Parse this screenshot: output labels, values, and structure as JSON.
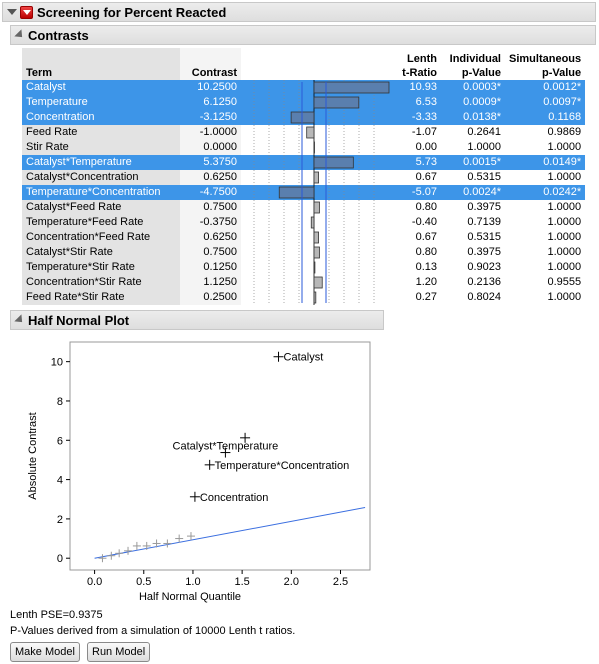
{
  "report": {
    "title": "Screening for Percent Reacted",
    "contrasts_title": "Contrasts",
    "half_normal_title": "Half Normal Plot"
  },
  "table": {
    "headers": {
      "term": "Term",
      "contrast": "Contrast",
      "lenth_1": "Lenth",
      "lenth_2": "t-Ratio",
      "ind_1": "Individual",
      "ind_2": "p-Value",
      "sim_1": "Simultaneous",
      "sim_2": "p-Value"
    },
    "rows": [
      {
        "term": "Catalyst",
        "contrast": "10.2500",
        "lenth": "10.93",
        "ind": "0.0003*",
        "sim": "0.0012*",
        "selected": true,
        "ind_sig": true,
        "sim_sig": true
      },
      {
        "term": "Temperature",
        "contrast": "6.1250",
        "lenth": "6.53",
        "ind": "0.0009*",
        "sim": "0.0097*",
        "selected": true,
        "ind_sig": true,
        "sim_sig": true
      },
      {
        "term": "Concentration",
        "contrast": "-3.1250",
        "lenth": "-3.33",
        "ind": "0.0138*",
        "sim": "0.1168",
        "selected": true,
        "ind_sig": true,
        "sim_sig": false
      },
      {
        "term": "Feed Rate",
        "contrast": "-1.0000",
        "lenth": "-1.07",
        "ind": "0.2641",
        "sim": "0.9869",
        "selected": false,
        "ind_sig": false,
        "sim_sig": false
      },
      {
        "term": "Stir Rate",
        "contrast": "0.0000",
        "lenth": "0.00",
        "ind": "1.0000",
        "sim": "1.0000",
        "selected": false,
        "ind_sig": false,
        "sim_sig": false
      },
      {
        "term": "Catalyst*Temperature",
        "contrast": "5.3750",
        "lenth": "5.73",
        "ind": "0.0015*",
        "sim": "0.0149*",
        "selected": true,
        "ind_sig": true,
        "sim_sig": true
      },
      {
        "term": "Catalyst*Concentration",
        "contrast": "0.6250",
        "lenth": "0.67",
        "ind": "0.5315",
        "sim": "1.0000",
        "selected": false,
        "ind_sig": false,
        "sim_sig": false
      },
      {
        "term": "Temperature*Concentration",
        "contrast": "-4.7500",
        "lenth": "-5.07",
        "ind": "0.0024*",
        "sim": "0.0242*",
        "selected": true,
        "ind_sig": true,
        "sim_sig": true
      },
      {
        "term": "Catalyst*Feed Rate",
        "contrast": "0.7500",
        "lenth": "0.80",
        "ind": "0.3975",
        "sim": "1.0000",
        "selected": false,
        "ind_sig": false,
        "sim_sig": false
      },
      {
        "term": "Temperature*Feed Rate",
        "contrast": "-0.3750",
        "lenth": "-0.40",
        "ind": "0.7139",
        "sim": "1.0000",
        "selected": false,
        "ind_sig": false,
        "sim_sig": false
      },
      {
        "term": "Concentration*Feed Rate",
        "contrast": "0.6250",
        "lenth": "0.67",
        "ind": "0.5315",
        "sim": "1.0000",
        "selected": false,
        "ind_sig": false,
        "sim_sig": false
      },
      {
        "term": "Catalyst*Stir Rate",
        "contrast": "0.7500",
        "lenth": "0.80",
        "ind": "0.3975",
        "sim": "1.0000",
        "selected": false,
        "ind_sig": false,
        "sim_sig": false
      },
      {
        "term": "Temperature*Stir Rate",
        "contrast": "0.1250",
        "lenth": "0.13",
        "ind": "0.9023",
        "sim": "1.0000",
        "selected": false,
        "ind_sig": false,
        "sim_sig": false
      },
      {
        "term": "Concentration*Stir Rate",
        "contrast": "1.1250",
        "lenth": "1.20",
        "ind": "0.2136",
        "sim": "0.9555",
        "selected": false,
        "ind_sig": false,
        "sim_sig": false
      },
      {
        "term": "Feed Rate*Stir Rate",
        "contrast": "0.2500",
        "lenth": "0.27",
        "ind": "0.8024",
        "sim": "1.0000",
        "selected": false,
        "ind_sig": false,
        "sim_sig": false
      }
    ]
  },
  "chart_data": {
    "type": "scatter",
    "xlabel": "Half Normal Quantile",
    "ylabel": "Absolute Contrast",
    "xlim": [
      -0.25,
      2.8
    ],
    "ylim": [
      -0.6,
      11.0
    ],
    "xticks": [
      "0.0",
      "0.5",
      "1.0",
      "1.5",
      "2.0",
      "2.5"
    ],
    "xtick_values": [
      0,
      0.5,
      1.0,
      1.5,
      2.0,
      2.5
    ],
    "yticks": [
      "0",
      "2",
      "4",
      "6",
      "8",
      "10"
    ],
    "ytick_values": [
      0,
      2,
      4,
      6,
      8,
      10
    ],
    "grid": false,
    "line": {
      "x": [
        0,
        2.75
      ],
      "y": [
        0,
        2.58
      ],
      "color": "#3a6ee0"
    },
    "points": [
      {
        "x": 0.08,
        "y": 0.0,
        "label": ""
      },
      {
        "x": 0.17,
        "y": 0.125,
        "label": ""
      },
      {
        "x": 0.25,
        "y": 0.25,
        "label": ""
      },
      {
        "x": 0.34,
        "y": 0.375,
        "label": ""
      },
      {
        "x": 0.43,
        "y": 0.625,
        "label": ""
      },
      {
        "x": 0.53,
        "y": 0.625,
        "label": ""
      },
      {
        "x": 0.63,
        "y": 0.75,
        "label": ""
      },
      {
        "x": 0.74,
        "y": 0.75,
        "label": ""
      },
      {
        "x": 0.86,
        "y": 1.0,
        "label": ""
      },
      {
        "x": 0.98,
        "y": 1.125,
        "label": ""
      },
      {
        "x": 1.02,
        "y": 3.125,
        "label": "Concentration"
      },
      {
        "x": 1.17,
        "y": 4.75,
        "label": "Temperature*Concentration"
      },
      {
        "x": 1.33,
        "y": 5.375,
        "label": "Catalyst*Temperature"
      },
      {
        "x": 1.53,
        "y": 6.125,
        "label": ""
      },
      {
        "x": 1.87,
        "y": 10.25,
        "label": "Catalyst"
      }
    ],
    "significant_color": "#000000",
    "insignificant_color": "#999999"
  },
  "footer": {
    "pse": "Lenth PSE=0.9375",
    "note": "P-Values derived from a simulation of 10000 Lenth t ratios.",
    "make_model": "Make Model",
    "run_model": "Run Model"
  }
}
